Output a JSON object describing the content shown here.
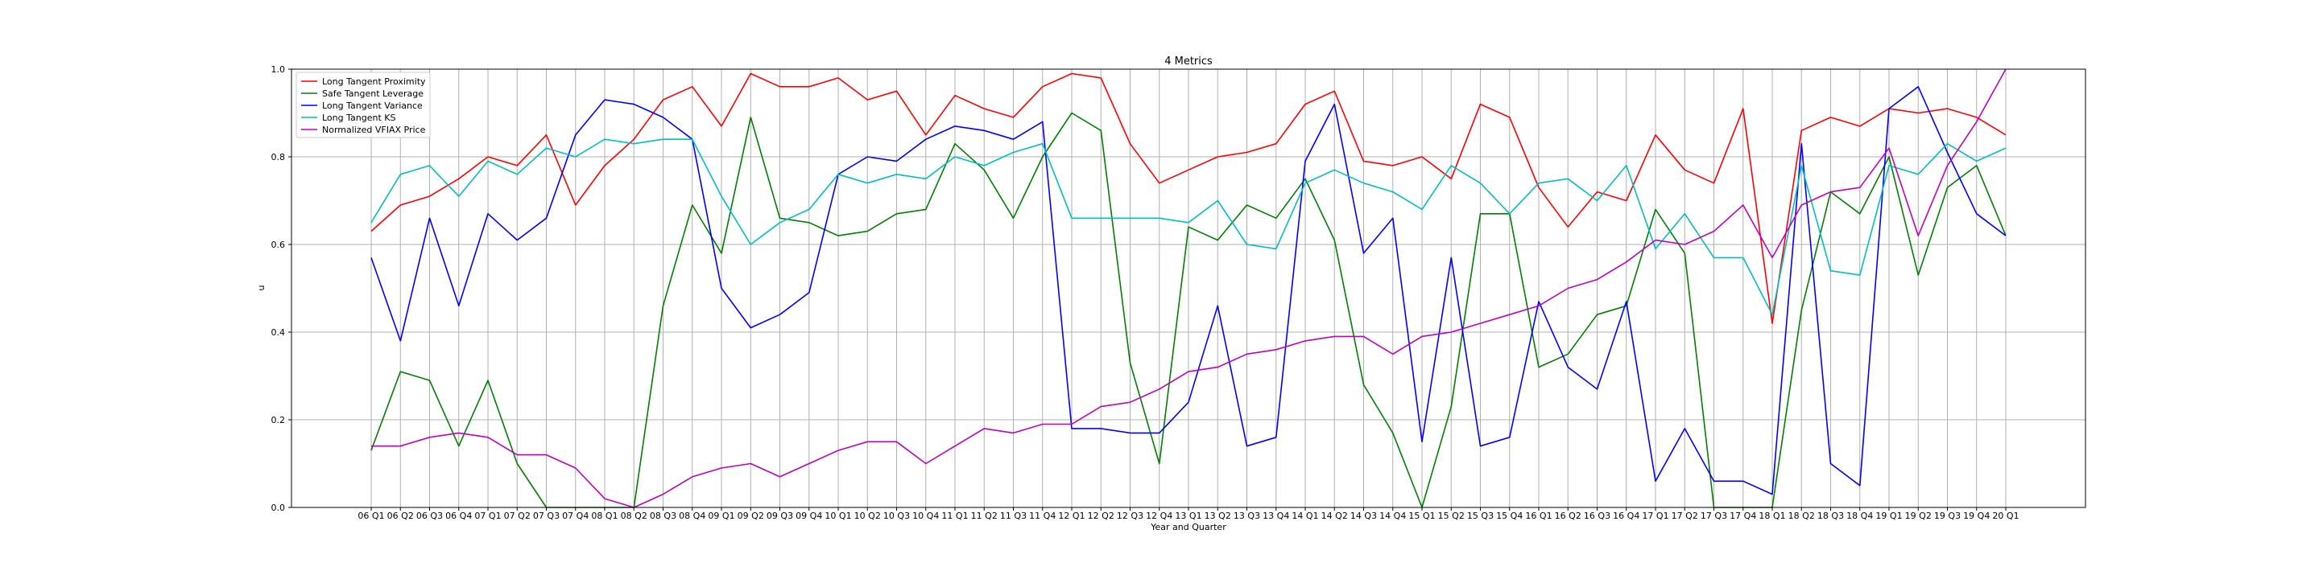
{
  "chart_data": {
    "type": "line",
    "title": "4 Metrics",
    "xlabel": "Year and Quarter",
    "ylabel": "u",
    "ylim": [
      0,
      1
    ],
    "yticks": [
      "0.0",
      "0.2",
      "0.4",
      "0.6",
      "0.8",
      "1.0"
    ],
    "grid": true,
    "legend_position": "top-left",
    "categories": [
      "06 Q1",
      "06 Q2",
      "06 Q3",
      "06 Q4",
      "07 Q1",
      "07 Q2",
      "07 Q3",
      "07 Q4",
      "08 Q1",
      "08 Q2",
      "08 Q3",
      "08 Q4",
      "09 Q1",
      "09 Q2",
      "09 Q3",
      "09 Q4",
      "10 Q1",
      "10 Q2",
      "10 Q3",
      "10 Q4",
      "11 Q1",
      "11 Q2",
      "11 Q3",
      "11 Q4",
      "12 Q1",
      "12 Q2",
      "12 Q3",
      "12 Q4",
      "13 Q1",
      "13 Q2",
      "13 Q3",
      "13 Q4",
      "14 Q1",
      "14 Q2",
      "14 Q3",
      "14 Q4",
      "15 Q1",
      "15 Q2",
      "15 Q3",
      "15 Q4",
      "16 Q1",
      "16 Q2",
      "16 Q3",
      "16 Q4",
      "17 Q1",
      "17 Q2",
      "17 Q3",
      "17 Q4",
      "18 Q1",
      "18 Q2",
      "18 Q3",
      "18 Q4",
      "19 Q1",
      "19 Q2",
      "19 Q3",
      "19 Q4",
      "20 Q1"
    ],
    "series": [
      {
        "name": "Long Tangent Proximity",
        "color": "#ff0000",
        "values": [
          0.63,
          0.69,
          0.71,
          0.75,
          0.8,
          0.78,
          0.85,
          0.69,
          0.78,
          0.84,
          0.93,
          0.96,
          0.87,
          0.99,
          0.96,
          0.96,
          0.98,
          0.93,
          0.95,
          0.85,
          0.94,
          0.91,
          0.89,
          0.96,
          0.99,
          0.98,
          0.83,
          0.74,
          0.77,
          0.8,
          0.81,
          0.83,
          0.92,
          0.95,
          0.79,
          0.78,
          0.8,
          0.75,
          0.92,
          0.89,
          0.73,
          0.64,
          0.72,
          0.7,
          0.85,
          0.77,
          0.74,
          0.91,
          0.42,
          0.86,
          0.89,
          0.87,
          0.91,
          0.9,
          0.91,
          0.89,
          0.85
        ]
      },
      {
        "name": "Safe Tangent Leverage",
        "color": "#008000",
        "values": [
          0.13,
          0.31,
          0.29,
          0.14,
          0.29,
          0.1,
          0.0,
          0.0,
          0.0,
          0.0,
          0.46,
          0.69,
          0.58,
          0.89,
          0.66,
          0.65,
          0.62,
          0.63,
          0.67,
          0.68,
          0.83,
          0.77,
          0.66,
          0.8,
          0.9,
          0.86,
          0.33,
          0.1,
          0.64,
          0.61,
          0.69,
          0.66,
          0.75,
          0.61,
          0.28,
          0.17,
          0.0,
          0.23,
          0.67,
          0.67,
          0.32,
          0.35,
          0.44,
          0.46,
          0.68,
          0.58,
          0.0,
          0.0,
          0.0,
          0.45,
          0.72,
          0.67,
          0.8,
          0.53,
          0.73,
          0.78,
          0.62
        ]
      },
      {
        "name": "Long Tangent Variance",
        "color": "#0000ff",
        "values": [
          0.57,
          0.38,
          0.66,
          0.46,
          0.67,
          0.61,
          0.66,
          0.85,
          0.93,
          0.92,
          0.89,
          0.84,
          0.5,
          0.41,
          0.44,
          0.49,
          0.76,
          0.8,
          0.79,
          0.84,
          0.87,
          0.86,
          0.84,
          0.88,
          0.18,
          0.18,
          0.17,
          0.17,
          0.24,
          0.46,
          0.14,
          0.16,
          0.79,
          0.92,
          0.58,
          0.66,
          0.15,
          0.57,
          0.14,
          0.16,
          0.47,
          0.32,
          0.27,
          0.47,
          0.06,
          0.18,
          0.06,
          0.06,
          0.03,
          0.83,
          0.1,
          0.05,
          0.91,
          0.96,
          0.81,
          0.67,
          0.62
        ]
      },
      {
        "name": "Long Tangent KS",
        "color": "#00bfbf",
        "values": [
          0.65,
          0.76,
          0.78,
          0.71,
          0.79,
          0.76,
          0.82,
          0.8,
          0.84,
          0.83,
          0.84,
          0.84,
          0.71,
          0.6,
          0.65,
          0.68,
          0.76,
          0.74,
          0.76,
          0.75,
          0.8,
          0.78,
          0.81,
          0.83,
          0.66,
          0.66,
          0.66,
          0.66,
          0.65,
          0.7,
          0.6,
          0.59,
          0.74,
          0.77,
          0.74,
          0.72,
          0.68,
          0.78,
          0.74,
          0.67,
          0.74,
          0.75,
          0.7,
          0.78,
          0.59,
          0.67,
          0.57,
          0.57,
          0.44,
          0.78,
          0.54,
          0.53,
          0.78,
          0.76,
          0.83,
          0.79,
          0.82
        ]
      },
      {
        "name": "Normalized VFIAX Price",
        "color": "#bf00bf",
        "values": [
          0.14,
          0.14,
          0.16,
          0.17,
          0.16,
          0.12,
          0.12,
          0.09,
          0.02,
          0.0,
          0.03,
          0.07,
          0.09,
          0.1,
          0.07,
          0.1,
          0.13,
          0.15,
          0.15,
          0.1,
          0.14,
          0.18,
          0.17,
          0.19,
          0.19,
          0.23,
          0.24,
          0.27,
          0.31,
          0.32,
          0.35,
          0.36,
          0.38,
          0.39,
          0.39,
          0.35,
          0.39,
          0.4,
          0.42,
          0.44,
          0.46,
          0.5,
          0.52,
          0.56,
          0.61,
          0.6,
          0.63,
          0.69,
          0.57,
          0.69,
          0.72,
          0.73,
          0.82,
          0.62,
          0.78,
          0.88,
          1.0
        ]
      }
    ]
  }
}
